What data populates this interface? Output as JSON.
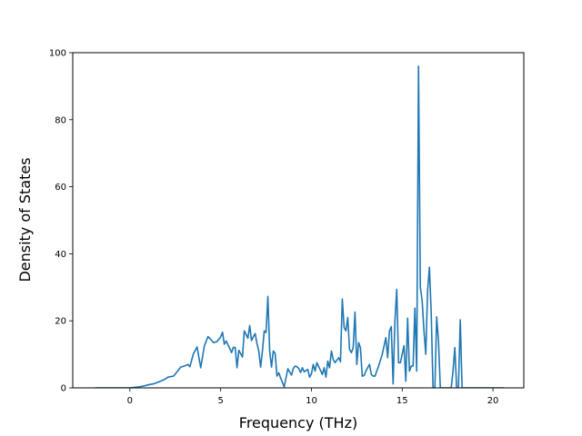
{
  "chart_data": {
    "type": "line",
    "xlabel": "Frequency (THz)",
    "ylabel": "Density of States",
    "xlim": [
      -3.15,
      21.7
    ],
    "ylim": [
      0,
      100
    ],
    "xticks": [
      0,
      5,
      10,
      15,
      20
    ],
    "yticks": [
      0,
      20,
      40,
      60,
      80,
      100
    ],
    "xtick_labels": [
      "0",
      "5",
      "10",
      "15",
      "20"
    ],
    "ytick_labels": [
      "0",
      "20",
      "40",
      "60",
      "80",
      "100"
    ],
    "grid": false,
    "legend": "none",
    "series": [
      {
        "color": "#1f77b4",
        "x": [
          -1.9,
          -1.0,
          0.0,
          0.5,
          0.8,
          1.0,
          1.3,
          1.6,
          1.9,
          2.1,
          2.4,
          2.6,
          2.8,
          3.0,
          3.2,
          3.3,
          3.5,
          3.7,
          3.9,
          4.1,
          4.3,
          4.5,
          4.6,
          4.8,
          5.0,
          5.1,
          5.2,
          5.3,
          5.5,
          5.6,
          5.7,
          5.8,
          5.9,
          6.0,
          6.2,
          6.3,
          6.5,
          6.6,
          6.7,
          6.8,
          6.9,
          7.0,
          7.1,
          7.2,
          7.3,
          7.4,
          7.5,
          7.6,
          7.7,
          7.8,
          7.9,
          8.0,
          8.1,
          8.2,
          8.3,
          8.5,
          8.7,
          8.9,
          9.0,
          9.1,
          9.2,
          9.3,
          9.4,
          9.5,
          9.6,
          9.8,
          9.9,
          10.0,
          10.1,
          10.2,
          10.3,
          10.5,
          10.6,
          10.7,
          10.8,
          10.9,
          11.0,
          11.1,
          11.2,
          11.3,
          11.5,
          11.6,
          11.7,
          11.8,
          11.9,
          12.0,
          12.1,
          12.2,
          12.3,
          12.4,
          12.5,
          12.6,
          12.7,
          12.8,
          12.9,
          13.0,
          13.2,
          13.3,
          13.4,
          13.5,
          13.7,
          13.9,
          14.1,
          14.2,
          14.3,
          14.4,
          14.5,
          14.6,
          14.7,
          14.8,
          14.9,
          15.0,
          15.1,
          15.2,
          15.3,
          15.4,
          15.5,
          15.6,
          15.7,
          15.8,
          15.9,
          16.0,
          16.1,
          16.2,
          16.3,
          16.4,
          16.5,
          16.6,
          16.7,
          16.8,
          16.9,
          17.0,
          17.1,
          17.2,
          17.3,
          17.4,
          17.5,
          17.6,
          17.7,
          17.8,
          17.9,
          18.0,
          18.1,
          18.2,
          18.3,
          18.4,
          18.5,
          19.0,
          20.0,
          20.6
        ],
        "y": [
          0,
          0,
          0,
          0.3,
          0.6,
          0.9,
          1.2,
          1.8,
          2.5,
          3.2,
          3.5,
          4.8,
          6.2,
          6.5,
          7.0,
          6.3,
          10.2,
          12.2,
          6.0,
          12.5,
          15.3,
          14.2,
          13.5,
          13.8,
          15.2,
          16.6,
          13.0,
          14.0,
          11.8,
          10.5,
          12.1,
          12.0,
          6.0,
          11.2,
          9.2,
          17.0,
          14.8,
          18.6,
          14.1,
          15.3,
          16.2,
          13.2,
          11.0,
          6.2,
          11.0,
          17.0,
          16.5,
          27.3,
          11.0,
          6.2,
          11.0,
          10.3,
          3.5,
          4.5,
          3.0,
          0.3,
          5.7,
          3.8,
          5.8,
          6.5,
          6.3,
          5.8,
          4.6,
          6.0,
          4.8,
          5.5,
          3.2,
          4.2,
          7.0,
          5.0,
          7.5,
          5.2,
          4.0,
          6.0,
          3.2,
          8.0,
          6.0,
          11.0,
          8.5,
          7.5,
          9.0,
          7.8,
          26.5,
          18.0,
          17.0,
          21.0,
          11.5,
          10.5,
          12.0,
          22.6,
          7.0,
          13.5,
          12.0,
          3.5,
          3.7,
          5.0,
          7.0,
          4.0,
          3.5,
          3.5,
          6.5,
          10.0,
          15.0,
          9.0,
          17.0,
          18.3,
          1.2,
          20.0,
          29.4,
          7.5,
          7.5,
          10.0,
          12.6,
          2.0,
          20.8,
          5.0,
          6.5,
          6.5,
          23.8,
          5.0,
          96.0,
          30.0,
          26.0,
          17.0,
          10.0,
          29.0,
          36.0,
          22.0,
          0,
          0,
          21.2,
          14.0,
          0,
          0,
          0,
          0,
          0,
          0,
          0,
          5.0,
          12.0,
          0,
          0,
          20.3,
          0,
          0,
          0,
          0,
          0,
          0
        ]
      }
    ]
  }
}
